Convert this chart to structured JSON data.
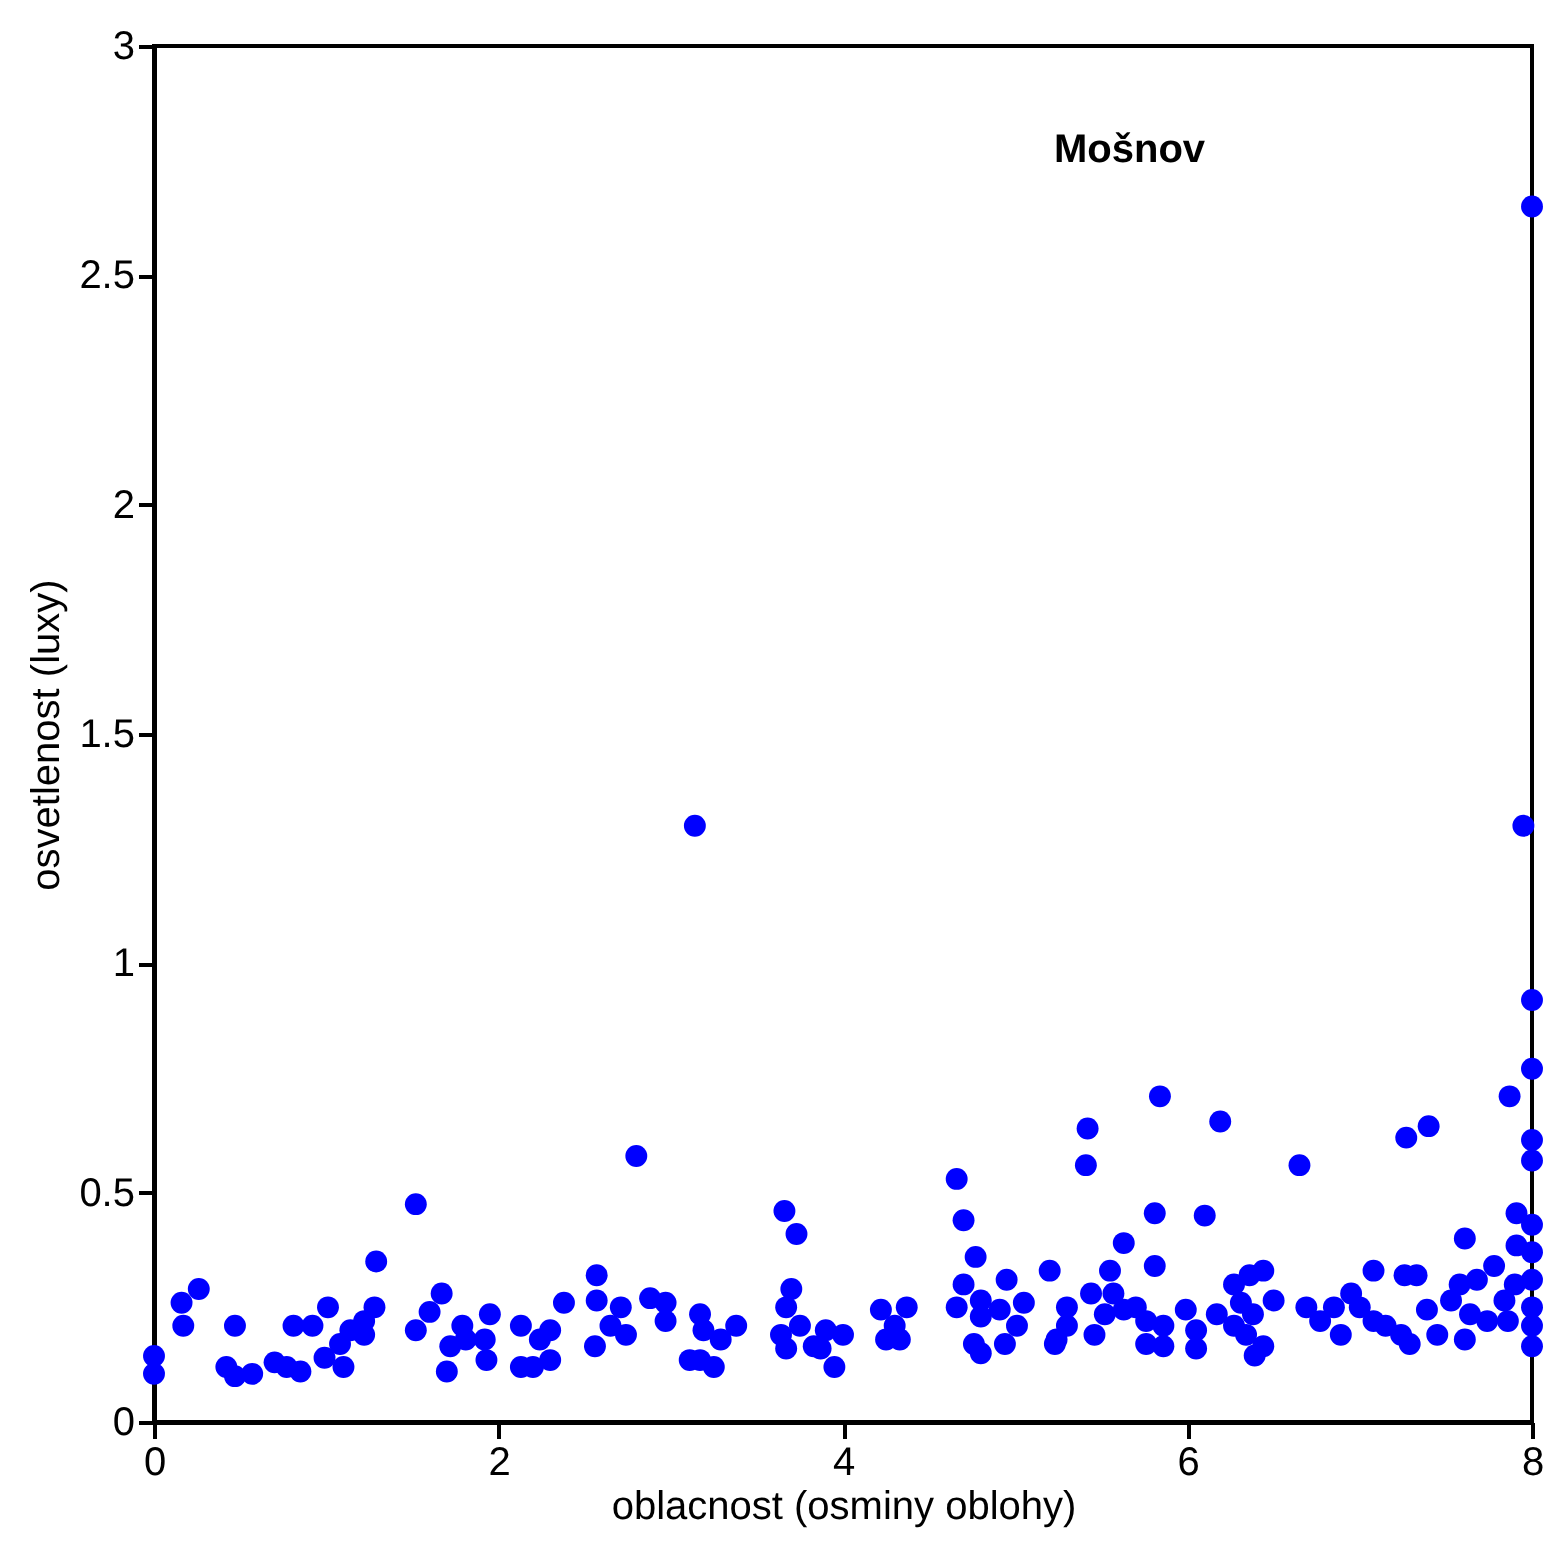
{
  "chart_data": {
    "type": "scatter",
    "xlabel": "oblacnost (osminy oblohy)",
    "ylabel": "osvetlenost (luxy)",
    "annotations": [
      "Mošnov"
    ],
    "xlim": [
      0,
      8
    ],
    "ylim": [
      0,
      3
    ],
    "xticks": [
      0,
      2,
      4,
      6,
      8
    ],
    "yticks": [
      0,
      0.5,
      1,
      1.5,
      2,
      2.5,
      3
    ],
    "grid": false,
    "legend": false,
    "marker": "circle",
    "series": [
      {
        "color": "#0000ff",
        "x": [
          0,
          0,
          0.16,
          0.17,
          0.26,
          0.42,
          0.47,
          0.47,
          0.57,
          0.7,
          0.77,
          0.85,
          0.81,
          0.92,
          1.01,
          0.99,
          1.1,
          1.08,
          1.14,
          1.22,
          1.22,
          1.28,
          1.29,
          1.52,
          1.52,
          1.6,
          1.67,
          1.7,
          1.72,
          1.79,
          1.81,
          1.92,
          1.95,
          1.93,
          2.13,
          2.13,
          2.2,
          2.24,
          2.3,
          2.3,
          2.38,
          2.57,
          2.57,
          2.56,
          2.8,
          2.71,
          2.65,
          2.74,
          2.88,
          2.97,
          2.97,
          3.17,
          3.19,
          3.29,
          3.38,
          3.11,
          3.17,
          3.25,
          3.14,
          3.66,
          3.73,
          3.7,
          3.67,
          3.64,
          3.67,
          3.75,
          3.83,
          3.9,
          4.0,
          3.95,
          3.87,
          4.22,
          4.3,
          4.37,
          4.25,
          4.33,
          4.66,
          4.7,
          4.77,
          4.7,
          4.66,
          4.8,
          4.95,
          5.05,
          4.8,
          4.91,
          5.01,
          4.76,
          4.8,
          4.94,
          5.2,
          5.23,
          5.84,
          5.42,
          5.41,
          6.19,
          6.65,
          7.27,
          7.4,
          7.87,
          5.81,
          6.1,
          5.63,
          5.55,
          5.81,
          5.44,
          5.3,
          5.3,
          5.24,
          5.57,
          5.63,
          5.7,
          5.52,
          5.76,
          5.86,
          5.46,
          5.76,
          5.86,
          5.99,
          6.05,
          6.05,
          6.17,
          6.27,
          6.36,
          6.44,
          6.31,
          6.38,
          6.27,
          6.34,
          6.44,
          6.39,
          6.5,
          6.69,
          6.85,
          6.77,
          6.89,
          6.95,
          7.0,
          7.08,
          7.08,
          7.15,
          7.24,
          7.26,
          7.33,
          7.29,
          7.39,
          7.45,
          7.53,
          7.61,
          7.58,
          7.68,
          7.64,
          7.61,
          7.78,
          7.74,
          7.84,
          7.86,
          7.91,
          7.91,
          7.9,
          8,
          8,
          8,
          8,
          8,
          8,
          8,
          8,
          8,
          8,
          8,
          7.95
        ],
        "values": [
          0.144,
          0.105,
          0.26,
          0.21,
          0.29,
          0.12,
          0.1,
          0.21,
          0.105,
          0.13,
          0.12,
          0.11,
          0.21,
          0.21,
          0.25,
          0.14,
          0.12,
          0.17,
          0.2,
          0.19,
          0.22,
          0.25,
          0.35,
          0.475,
          0.2,
          0.24,
          0.28,
          0.11,
          0.165,
          0.21,
          0.18,
          0.18,
          0.235,
          0.135,
          0.21,
          0.12,
          0.12,
          0.18,
          0.2,
          0.135,
          0.26,
          0.32,
          0.265,
          0.165,
          0.58,
          0.25,
          0.21,
          0.19,
          0.27,
          0.26,
          0.22,
          0.235,
          0.2,
          0.18,
          0.21,
          0.135,
          0.135,
          0.12,
          1.3,
          0.46,
          0.41,
          0.29,
          0.25,
          0.19,
          0.16,
          0.21,
          0.165,
          0.2,
          0.19,
          0.12,
          0.16,
          0.245,
          0.21,
          0.25,
          0.18,
          0.18,
          0.53,
          0.44,
          0.36,
          0.3,
          0.25,
          0.265,
          0.31,
          0.26,
          0.23,
          0.245,
          0.21,
          0.17,
          0.15,
          0.17,
          0.33,
          0.17,
          0.71,
          0.64,
          0.56,
          0.655,
          0.56,
          0.62,
          0.645,
          0.71,
          0.455,
          0.45,
          0.39,
          0.33,
          0.34,
          0.28,
          0.25,
          0.21,
          0.18,
          0.28,
          0.245,
          0.25,
          0.235,
          0.22,
          0.21,
          0.19,
          0.17,
          0.165,
          0.245,
          0.2,
          0.16,
          0.235,
          0.3,
          0.32,
          0.33,
          0.26,
          0.235,
          0.21,
          0.19,
          0.165,
          0.145,
          0.265,
          0.25,
          0.25,
          0.22,
          0.19,
          0.28,
          0.25,
          0.33,
          0.22,
          0.21,
          0.19,
          0.32,
          0.32,
          0.17,
          0.245,
          0.19,
          0.265,
          0.4,
          0.3,
          0.31,
          0.235,
          0.18,
          0.34,
          0.22,
          0.265,
          0.22,
          0.455,
          0.385,
          0.3,
          2.65,
          0.92,
          0.77,
          0.615,
          0.57,
          0.43,
          0.37,
          0.31,
          0.25,
          0.21,
          0.165,
          1.3
        ]
      }
    ]
  }
}
